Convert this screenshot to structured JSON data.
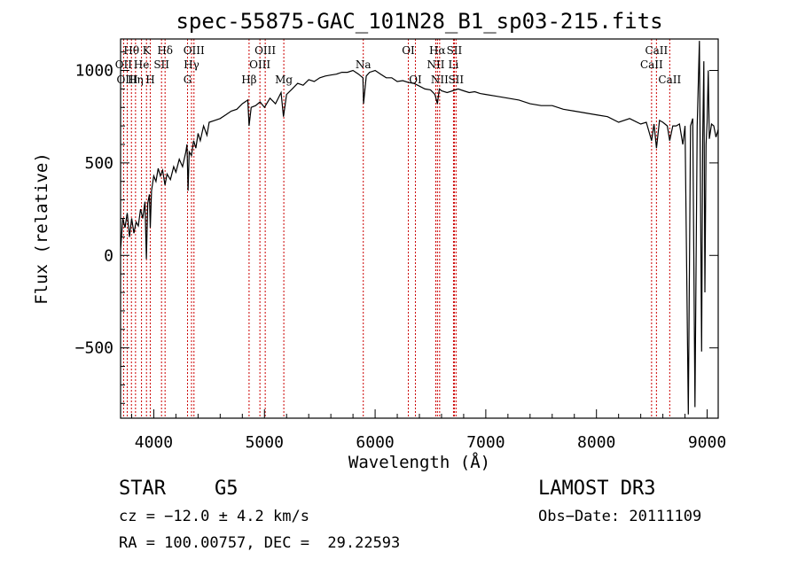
{
  "chart_data": {
    "type": "line",
    "title": "spec-55875-GAC_101N28_B1_sp03-215.fits",
    "xlabel": "Wavelength (Å)",
    "ylabel": "Flux (relative)",
    "xlim": [
      3700,
      9100
    ],
    "ylim": [
      -880,
      1170
    ],
    "xticks": [
      4000,
      5000,
      6000,
      7000,
      8000,
      9000
    ],
    "yticks": [
      -500,
      0,
      500,
      1000
    ],
    "series": [
      {
        "name": "spectrum",
        "x": [
          3700,
          3720,
          3740,
          3760,
          3780,
          3800,
          3820,
          3840,
          3860,
          3880,
          3900,
          3920,
          3933,
          3945,
          3960,
          3968,
          3980,
          4000,
          4020,
          4040,
          4060,
          4080,
          4101,
          4120,
          4150,
          4180,
          4200,
          4230,
          4260,
          4290,
          4300,
          4310,
          4320,
          4340,
          4360,
          4380,
          4400,
          4420,
          4450,
          4480,
          4500,
          4550,
          4600,
          4650,
          4700,
          4750,
          4800,
          4850,
          4861,
          4880,
          4920,
          4960,
          5000,
          5050,
          5100,
          5150,
          5172,
          5200,
          5250,
          5300,
          5350,
          5400,
          5450,
          5500,
          5550,
          5600,
          5650,
          5700,
          5750,
          5800,
          5850,
          5890,
          5895,
          5920,
          5950,
          6000,
          6050,
          6100,
          6150,
          6200,
          6250,
          6300,
          6350,
          6400,
          6450,
          6500,
          6540,
          6563,
          6580,
          6600,
          6650,
          6700,
          6750,
          6800,
          6850,
          6900,
          6950,
          7000,
          7100,
          7200,
          7300,
          7400,
          7500,
          7600,
          7700,
          7800,
          7900,
          8000,
          8100,
          8200,
          8300,
          8400,
          8450,
          8498,
          8520,
          8542,
          8570,
          8600,
          8640,
          8662,
          8690,
          8720,
          8750,
          8780,
          8800,
          8830,
          8850,
          8870,
          8890,
          8910,
          8930,
          8950,
          8960,
          8970,
          8980,
          8990,
          9000,
          9010,
          9020,
          9040,
          9060,
          9080,
          9100
        ],
        "values": [
          30,
          200,
          150,
          230,
          100,
          200,
          120,
          180,
          160,
          250,
          200,
          290,
          -20,
          280,
          330,
          150,
          350,
          430,
          400,
          470,
          430,
          460,
          380,
          440,
          410,
          480,
          450,
          520,
          480,
          560,
          600,
          350,
          560,
          540,
          620,
          580,
          660,
          620,
          700,
          650,
          720,
          730,
          740,
          760,
          780,
          790,
          820,
          840,
          700,
          800,
          810,
          830,
          800,
          850,
          820,
          880,
          750,
          870,
          900,
          930,
          920,
          950,
          940,
          960,
          970,
          975,
          980,
          990,
          990,
          1000,
          980,
          960,
          820,
          970,
          990,
          1000,
          980,
          960,
          960,
          940,
          945,
          935,
          930,
          915,
          900,
          895,
          870,
          820,
          900,
          890,
          880,
          890,
          900,
          890,
          880,
          885,
          875,
          870,
          860,
          850,
          840,
          820,
          810,
          810,
          790,
          780,
          770,
          760,
          750,
          720,
          740,
          710,
          720,
          620,
          710,
          580,
          730,
          720,
          700,
          620,
          700,
          700,
          710,
          600,
          700,
          -860,
          700,
          740,
          -820,
          700,
          1160,
          -520,
          620,
          1050,
          -200,
          600,
          720,
          1000,
          630,
          710,
          700,
          640,
          680
        ]
      }
    ],
    "spectral_lines": [
      {
        "label": "Hθ",
        "x": 3798,
        "row": 1
      },
      {
        "label": "OII",
        "x": 3727,
        "row": 2
      },
      {
        "label": "OIII",
        "x": 3760,
        "row": 3
      },
      {
        "label": "K",
        "x": 3934,
        "row": 1
      },
      {
        "label": "He",
        "x": 3889,
        "row": 2
      },
      {
        "label": "Hη",
        "x": 3835,
        "row": 3
      },
      {
        "label": "Hδ",
        "x": 4102,
        "row": 1
      },
      {
        "label": "SII",
        "x": 4070,
        "row": 2
      },
      {
        "label": "H",
        "x": 3968,
        "row": 3
      },
      {
        "label": "OIII",
        "x": 4363,
        "row": 1
      },
      {
        "label": "Hγ",
        "x": 4341,
        "row": 2
      },
      {
        "label": "G",
        "x": 4305,
        "row": 3
      },
      {
        "label": "OIII",
        "x": 5007,
        "row": 1
      },
      {
        "label": "OIII",
        "x": 4959,
        "row": 2
      },
      {
        "label": "Hβ",
        "x": 4861,
        "row": 3
      },
      {
        "label": "Mg",
        "x": 5175,
        "row": 3
      },
      {
        "label": "Na",
        "x": 5893,
        "row": 2
      },
      {
        "label": "OI",
        "x": 6300,
        "row": 1
      },
      {
        "label": "OI",
        "x": 6364,
        "row": 3
      },
      {
        "label": "Hα",
        "x": 6563,
        "row": 1
      },
      {
        "label": "NII",
        "x": 6548,
        "row": 2
      },
      {
        "label": "NII",
        "x": 6583,
        "row": 3
      },
      {
        "label": "SII",
        "x": 6716,
        "row": 1
      },
      {
        "label": "Li",
        "x": 6708,
        "row": 2
      },
      {
        "label": "SII",
        "x": 6731,
        "row": 3
      },
      {
        "label": "CaII",
        "x": 8542,
        "row": 1
      },
      {
        "label": "CaII",
        "x": 8498,
        "row": 2
      },
      {
        "label": "CaII",
        "x": 8662,
        "row": 3
      }
    ]
  },
  "info": {
    "object_class": "STAR",
    "subclass": "G5",
    "survey": "LAMOST DR3",
    "cz": "cz = −12.0 ± 4.2 km/s",
    "obs_date": "Obs−Date: 20111109",
    "coords": "RA = 100.00757, DEC =  29.22593"
  },
  "colors": {
    "axis": "#000000",
    "spectrum": "#000000",
    "line_marker": "#cc0000"
  }
}
